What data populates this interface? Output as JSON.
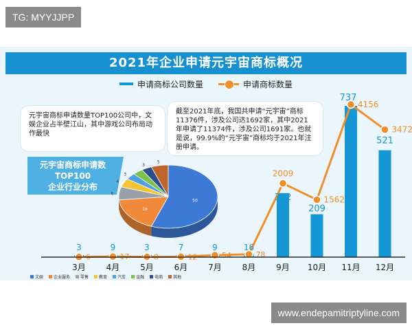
{
  "tag": "TG: MYYJJPP",
  "watermark": "www.endepamitriptyline.com",
  "title": "2021年企业申请元宇宙商标概况",
  "legend": {
    "bars": "申请商标公司数量",
    "line": "申请商标数量"
  },
  "note_left": "元宇宙商标申请数量TOP100公司中，文娱企业占半壁江山，其中游戏公司布局动作最快",
  "note_right": "截至2021年底，我国共申请“元宇宙”商标11376件，涉及公司达1692家，其中2021年申请了11374件，涉及公司1691家。也就是说，99.9%的“元宇宙”商标均于2021年注册申请。",
  "pie_title": [
    "元宇宙商标申请数",
    "TOP100",
    "企业行业分布"
  ],
  "colors": {
    "bar": "#1596d5",
    "line": "#ee8f2a",
    "banner": "#1790cf",
    "background": "#eaf6fb"
  },
  "chart_data": [
    {
      "type": "bar",
      "categories": [
        "3月",
        "4月",
        "5月",
        "6月",
        "7月",
        "8月",
        "9月",
        "10月",
        "11月",
        "12月"
      ],
      "series": [
        {
          "name": "申请商标公司数量",
          "type": "bar",
          "values": [
            3,
            9,
            3,
            7,
            9,
            16,
            312,
            209,
            737,
            521
          ]
        },
        {
          "name": "申请商标数量",
          "type": "line",
          "values": [
            6,
            17,
            8,
            12,
            54,
            78,
            2009,
            1562,
            4156,
            3472
          ]
        }
      ],
      "grid": false,
      "legend_position": "top-center"
    },
    {
      "type": "pie",
      "title": "元宇宙商标申请数TOP100企业行业分布",
      "categories": [
        "文娱",
        "企业服务",
        "零售",
        "教育",
        "汽车",
        "金融",
        "电商",
        "其他"
      ],
      "slice_labels": [
        "50",
        "16",
        "6",
        "4",
        "3",
        "",
        "3",
        "5"
      ],
      "values": [
        50,
        16,
        6,
        4,
        3,
        3,
        3,
        5
      ],
      "colors": [
        "#3d7ad6",
        "#f08a3a",
        "#9aa0a8",
        "#f5c431",
        "#4ea1df",
        "#7cc24c",
        "#2d4d8c",
        "#c0652a"
      ]
    }
  ]
}
